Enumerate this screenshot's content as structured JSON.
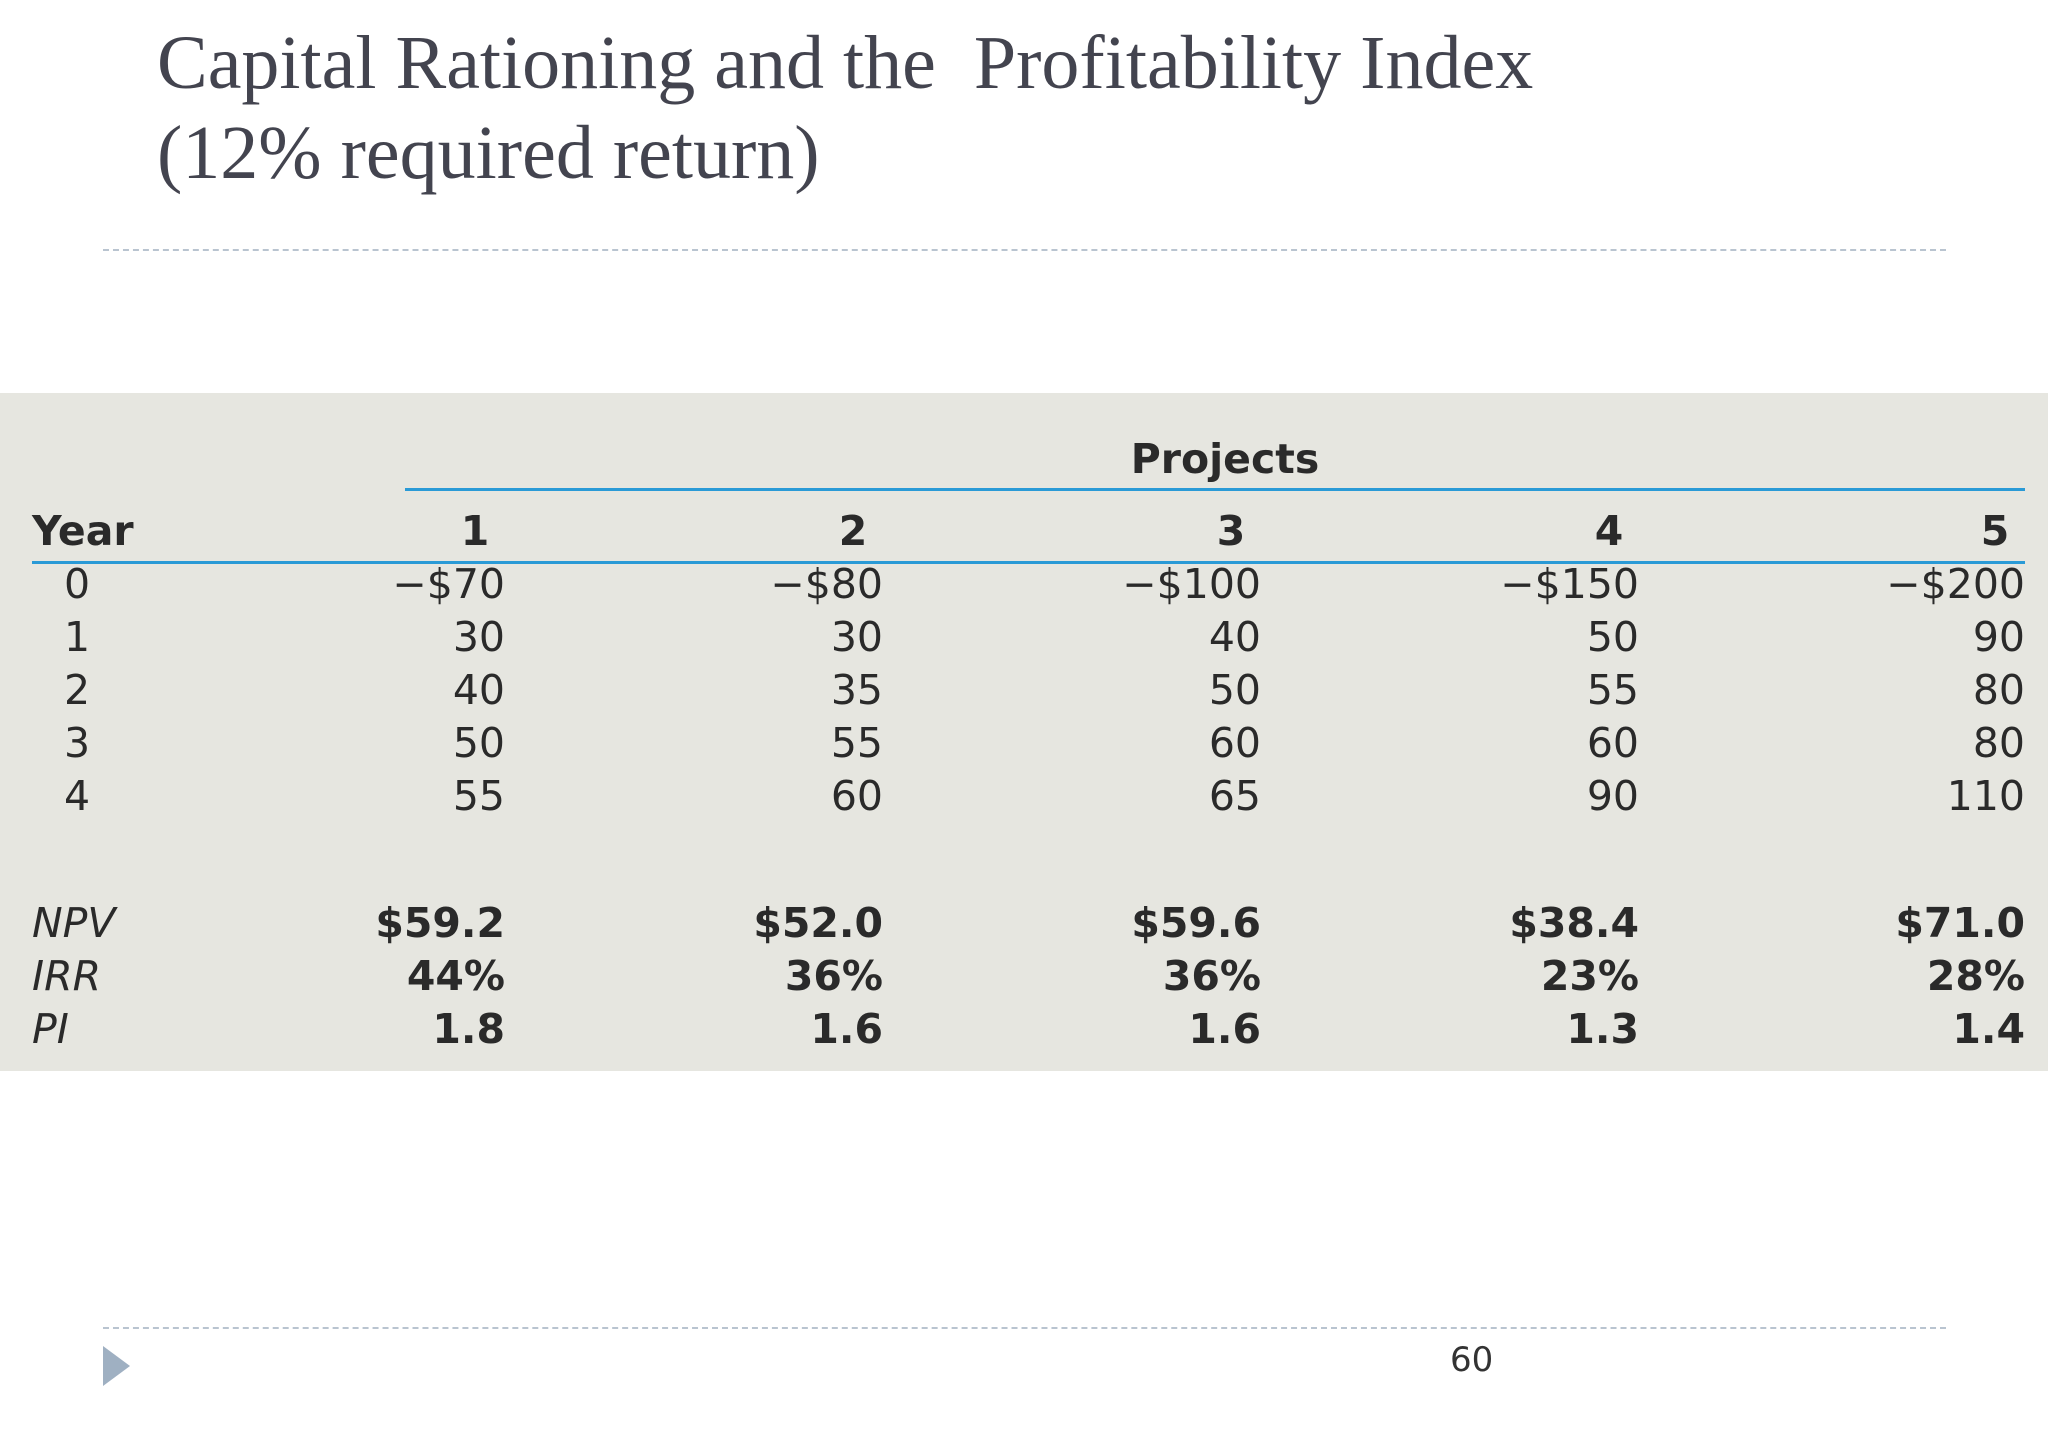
{
  "slide": {
    "title_line1": "Capital Rationing and the  Profitability Index",
    "title_line2": "(12% required return)",
    "page_number": "60"
  },
  "table": {
    "group_header": "Projects",
    "year_header": "Year",
    "columns": [
      "1",
      "2",
      "3",
      "4",
      "5"
    ],
    "rows": [
      {
        "year": "0",
        "values": [
          "−$70",
          "−$80",
          "−$100",
          "−$150",
          "−$200"
        ]
      },
      {
        "year": "1",
        "values": [
          "30",
          "30",
          "40",
          "50",
          "90"
        ]
      },
      {
        "year": "2",
        "values": [
          "40",
          "35",
          "50",
          "55",
          "80"
        ]
      },
      {
        "year": "3",
        "values": [
          "50",
          "55",
          "60",
          "60",
          "80"
        ]
      },
      {
        "year": "4",
        "values": [
          "55",
          "60",
          "65",
          "90",
          "110"
        ]
      }
    ],
    "summary": [
      {
        "label": "NPV",
        "values": [
          "$59.2",
          "$52.0",
          "$59.6",
          "$38.4",
          "$71.0"
        ]
      },
      {
        "label": "IRR",
        "values": [
          "44%",
          "36%",
          "36%",
          "23%",
          "28%"
        ]
      },
      {
        "label": "PI",
        "values": [
          "1.8",
          "1.6",
          "1.6",
          "1.3",
          "1.4"
        ]
      }
    ]
  }
}
